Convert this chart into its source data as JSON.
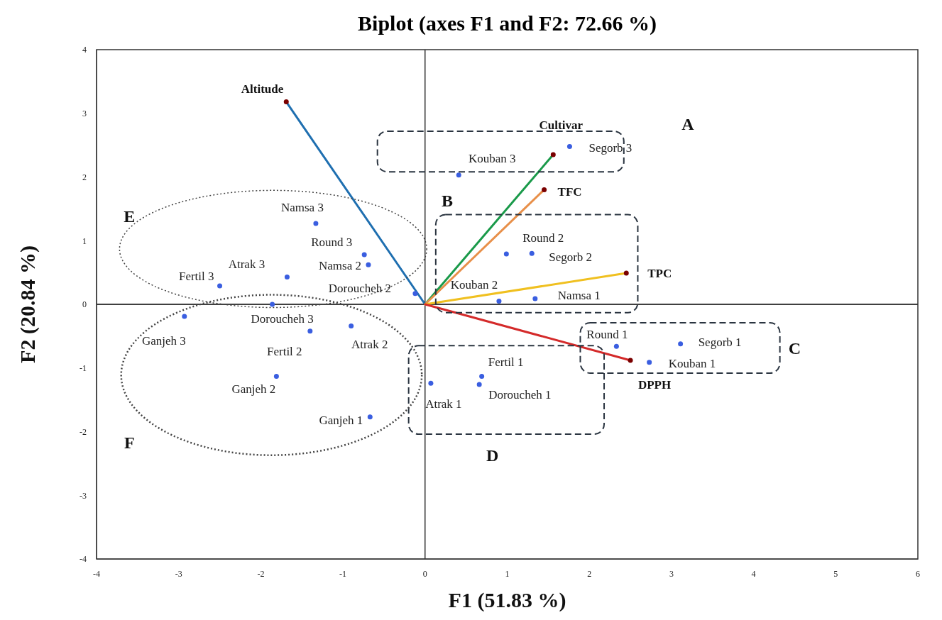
{
  "chart_data": {
    "type": "scatter",
    "title": "Biplot (axes F1 and F2: 72.66 %)",
    "xlabel": "F1 (51.83 %)",
    "ylabel": "F2 (20.84 %)",
    "xlim": [
      -4,
      6
    ],
    "xticks": [
      -4,
      -3,
      -2,
      -1,
      0,
      1,
      2,
      3,
      4,
      5,
      6
    ],
    "ylim": [
      -4,
      4
    ],
    "yticks": [
      -4,
      -3,
      -2,
      -1,
      0,
      1,
      2,
      3,
      4
    ],
    "grid": false,
    "legend": false,
    "ref_lines": [
      {
        "axis": "x",
        "value": 0,
        "color": "#000000"
      },
      {
        "axis": "y",
        "value": 0,
        "color": "#000000"
      }
    ],
    "annotations": [
      "A",
      "B",
      "C",
      "D",
      "E",
      "F"
    ],
    "series": [
      {
        "color": "#3a5ee0",
        "marker": "circle",
        "x": [
          1.76,
          0.41,
          0.99,
          1.3,
          0.9,
          1.34,
          2.33,
          3.11,
          2.73,
          0.69,
          0.66,
          0.07,
          -1.33,
          -0.74,
          -0.69,
          -1.68,
          -2.5,
          -0.12,
          -1.86,
          -2.93,
          -1.4,
          -0.9,
          -1.81,
          -0.67
        ],
        "values": [
          2.48,
          2.03,
          0.79,
          0.8,
          0.05,
          0.09,
          -0.66,
          -0.62,
          -0.91,
          -1.13,
          -1.26,
          -1.24,
          1.27,
          0.78,
          0.62,
          0.43,
          0.29,
          0.17,
          0.0,
          -0.19,
          -0.42,
          -0.34,
          -1.13,
          -1.77
        ],
        "value_labels": [
          "Segorb 3",
          "Kouban 3",
          "Round 2",
          "Segorb 2",
          "Kouban 2",
          "Namsa 1",
          "Round 1",
          "Segorb 1",
          "Kouban 1",
          "Fertil 1",
          "Doroucheh 1",
          "Atrak 1",
          "Namsa 3",
          "Round 3",
          "Namsa 2",
          "Atrak 3",
          "Fertil 3",
          "Doroucheh 2",
          "Doroucheh 3",
          "Ganjeh 3",
          "Fertil 2",
          "Atrak 2",
          "Ganjeh 2",
          "Ganjeh 1"
        ]
      },
      {
        "type": "line",
        "name": "Altitude",
        "color": "#1f6fb0",
        "marker": "none",
        "x": [
          0,
          -1.69
        ],
        "values": [
          0,
          3.18
        ]
      },
      {
        "type": "line",
        "name": "Cultivar",
        "color": "#1a9a4a",
        "marker": "none",
        "x": [
          0,
          1.56
        ],
        "values": [
          0,
          2.35
        ]
      },
      {
        "type": "line",
        "name": "TFC",
        "color": "#e8904a",
        "marker": "none",
        "x": [
          0,
          1.45
        ],
        "values": [
          0,
          1.8
        ]
      },
      {
        "type": "line",
        "name": "TPC",
        "color": "#f0c020",
        "marker": "none",
        "x": [
          0,
          2.45
        ],
        "values": [
          0,
          0.49
        ]
      },
      {
        "type": "line",
        "name": "DPPH",
        "color": "#d42a2a",
        "marker": "none",
        "x": [
          0,
          2.5
        ],
        "values": [
          0,
          -0.88
        ]
      },
      {
        "type": "scatter",
        "color": "#7a0000",
        "marker": "circle",
        "x": [
          -1.69,
          1.56,
          1.45,
          2.45,
          2.5
        ],
        "values": [
          3.18,
          2.35,
          1.8,
          0.49,
          -0.88
        ]
      }
    ]
  }
}
